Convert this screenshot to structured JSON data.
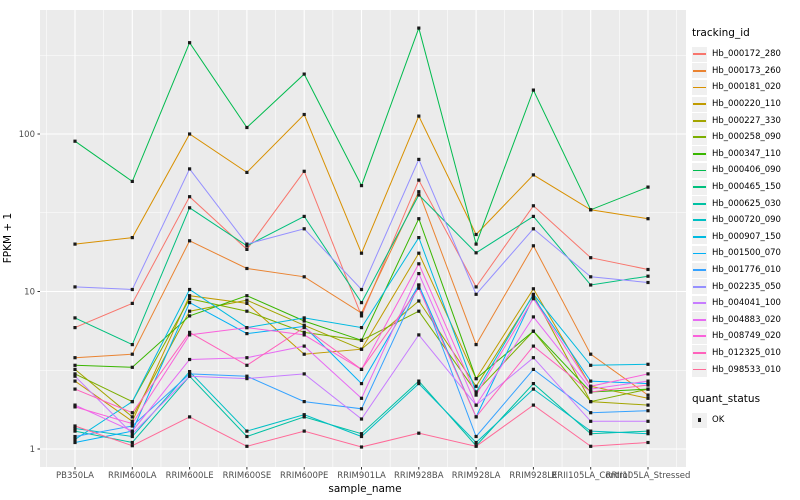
{
  "colors": {
    "panel_bg": "#EBEBEB",
    "grid_major": "#FFFFFF",
    "grid_minor": "#F7F7F7",
    "axis_tick_text": "#4D4D4D",
    "tick_mark": "#333333",
    "point": "#1A1A1A",
    "legend_key_bg": "#F0F0F0"
  },
  "legend": {
    "tracking_title": "tracking_id",
    "quant_title": "quant_status",
    "quant_ok_label": "OK"
  },
  "chart_data": {
    "type": "line",
    "xlabel": "sample_name",
    "ylabel": "FPKM + 1",
    "y_scale": "log10",
    "y_ticks": [
      1,
      10,
      100
    ],
    "y_minor_ticks": [
      3.1623,
      31.623,
      316.23
    ],
    "ylim": [
      1,
      600
    ],
    "grid": true,
    "legend_position": "right",
    "point_shape": "filled-square",
    "x_categories": [
      "PB350LA",
      "RRIM600LA",
      "RRIM600LE",
      "RRIM600SE",
      "RRIM600PE",
      "RRIM901LA",
      "RRIM928BA",
      "RRIM928LA",
      "RRIM928LE",
      "RRII105LA_Control",
      "RRII105LA_Stressed"
    ],
    "series": [
      {
        "name": "Hb_000172_280",
        "color": "#F8766D",
        "values": [
          5.9,
          8.4,
          40,
          18.5,
          58,
          7.0,
          51,
          10.7,
          35,
          16.4,
          13.8
        ]
      },
      {
        "name": "Hb_000173_260",
        "color": "#EA8331",
        "values": [
          3.8,
          4.0,
          21,
          14,
          12.4,
          7.3,
          43,
          4.6,
          19.5,
          4.0,
          2.2
        ]
      },
      {
        "name": "Hb_000181_020",
        "color": "#D89000",
        "values": [
          20,
          22,
          100,
          57,
          133,
          17.5,
          130,
          23,
          55,
          33,
          29
        ]
      },
      {
        "name": "Hb_000220_110",
        "color": "#C09B00",
        "values": [
          2.7,
          1.5,
          9.4,
          8.4,
          4.0,
          4.3,
          17.5,
          2.8,
          10.4,
          2.5,
          2.1
        ]
      },
      {
        "name": "Hb_000227_330",
        "color": "#A3A500",
        "values": [
          3.2,
          1.6,
          7.5,
          8.8,
          6.1,
          4.3,
          8.7,
          2.5,
          9.5,
          2.0,
          1.9
        ]
      },
      {
        "name": "Hb_000258_090",
        "color": "#7CAE00",
        "values": [
          3.0,
          2.0,
          9.0,
          7.5,
          5.5,
          4.9,
          7.5,
          2.3,
          5.6,
          2.0,
          2.4
        ]
      },
      {
        "name": "Hb_000347_110",
        "color": "#39B600",
        "values": [
          3.4,
          3.3,
          7.0,
          9.4,
          6.5,
          4.9,
          29,
          2.8,
          5.6,
          2.3,
          2.4
        ]
      },
      {
        "name": "Hb_000406_090",
        "color": "#00BB4E",
        "values": [
          90,
          50,
          380,
          110,
          240,
          47,
          470,
          20,
          190,
          33,
          46
        ]
      },
      {
        "name": "Hb_000465_150",
        "color": "#00BF7D",
        "values": [
          6.8,
          4.6,
          34,
          19.5,
          30,
          8.5,
          41,
          17.6,
          30,
          11,
          12.5
        ]
      },
      {
        "name": "Hb_000625_030",
        "color": "#00C1A3",
        "values": [
          1.3,
          1.1,
          2.9,
          1.2,
          1.6,
          1.25,
          2.7,
          1.05,
          2.6,
          1.25,
          1.3
        ]
      },
      {
        "name": "Hb_000720_090",
        "color": "#00BFC4",
        "values": [
          1.35,
          1.2,
          3.1,
          1.3,
          1.65,
          1.2,
          2.6,
          1.1,
          2.4,
          1.3,
          1.25
        ]
      },
      {
        "name": "Hb_000907_150",
        "color": "#00BAE0",
        "values": [
          1.15,
          2.0,
          10.3,
          5.9,
          6.8,
          5.9,
          22,
          2.3,
          9.6,
          3.4,
          3.45
        ]
      },
      {
        "name": "Hb_001500_070",
        "color": "#00B0F6",
        "values": [
          1.1,
          1.3,
          8.5,
          5.4,
          6.0,
          2.6,
          11,
          1.6,
          9.2,
          2.7,
          2.6
        ]
      },
      {
        "name": "Hb_001776_010",
        "color": "#35A2FF",
        "values": [
          1.2,
          1.4,
          3.0,
          2.9,
          2.0,
          1.8,
          11,
          1.2,
          3.2,
          1.7,
          1.75
        ]
      },
      {
        "name": "Hb_002235_050",
        "color": "#9590FF",
        "values": [
          10.7,
          10.3,
          60,
          20,
          25,
          10.3,
          69,
          9.6,
          25,
          12.4,
          11.4
        ]
      },
      {
        "name": "Hb_004041_100",
        "color": "#C77CFF",
        "values": [
          2.9,
          1.25,
          2.9,
          2.8,
          3.0,
          1.55,
          5.3,
          1.9,
          3.8,
          1.5,
          1.5
        ]
      },
      {
        "name": "Hb_004883_020",
        "color": "#E76BF3",
        "values": [
          1.9,
          1.3,
          3.7,
          3.8,
          4.5,
          2.1,
          13,
          1.9,
          6.9,
          2.4,
          2.7
        ]
      },
      {
        "name": "Hb_008749_020",
        "color": "#FA62DB",
        "values": [
          1.85,
          1.45,
          5.3,
          5.9,
          5.3,
          3.2,
          15,
          2.2,
          9.0,
          2.5,
          3.0
        ]
      },
      {
        "name": "Hb_012325_010",
        "color": "#FF62BC",
        "values": [
          2.4,
          1.7,
          5.5,
          3.4,
          5.9,
          3.2,
          10.5,
          1.6,
          4.5,
          2.3,
          2.55
        ]
      },
      {
        "name": "Hb_098533_010",
        "color": "#FF6A98",
        "values": [
          1.4,
          1.05,
          1.6,
          1.04,
          1.3,
          1.03,
          1.26,
          1.04,
          1.9,
          1.04,
          1.1
        ]
      }
    ],
    "quant_status": {
      "title": "quant_status",
      "items": [
        "OK"
      ]
    }
  }
}
